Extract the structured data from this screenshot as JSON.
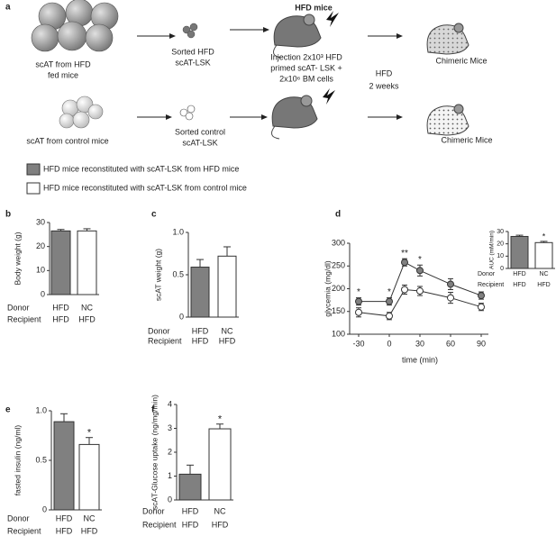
{
  "diagram": {
    "panel": "a",
    "source_hfd": [
      "scAT from HFD",
      "fed mice"
    ],
    "sorted_hfd": [
      "Sorted HFD",
      "scAT-LSK"
    ],
    "recipient_title": "HFD mice",
    "injection": [
      "Injection 2x10³ HFD",
      "primed scAT- LSK +",
      "2x10⁶ BM cells"
    ],
    "diet": [
      "HFD",
      "2 weeks"
    ],
    "outcome_top": "Chimeric Mice",
    "source_control": "scAT from control mice",
    "sorted_control": [
      "Sorted control",
      "scAT-LSK"
    ],
    "outcome_bottom": "Chimeric Mice",
    "legend": [
      "HFD mice reconstituted with scAT-LSK from HFD mice",
      "HFD mice reconstituted with scAT-LSK from control mice"
    ]
  },
  "chart_data": [
    {
      "type": "bar",
      "panel": "b",
      "ylabel": "Body weight (g)",
      "categories": [
        "HFD",
        "NC"
      ],
      "recipient_categories": [
        "HFD",
        "HFD"
      ],
      "row_labels": [
        "Donor",
        "Recipient"
      ],
      "values": [
        26.5,
        26.5
      ],
      "errors": [
        0.6,
        0.9
      ],
      "colors": [
        "#808080",
        "#ffffff"
      ],
      "ylim": [
        0,
        30
      ],
      "yticks": [
        0,
        10,
        20,
        30
      ],
      "significance": [
        null,
        null
      ]
    },
    {
      "type": "bar",
      "panel": "c",
      "ylabel": "scAT weight (g)",
      "categories": [
        "HFD",
        "NC"
      ],
      "recipient_categories": [
        "HFD",
        "HFD"
      ],
      "row_labels": [
        "Donor",
        "Recipient"
      ],
      "values": [
        0.59,
        0.72
      ],
      "errors": [
        0.09,
        0.11
      ],
      "colors": [
        "#808080",
        "#ffffff"
      ],
      "ylim": [
        0,
        1
      ],
      "yticks": [
        0,
        0.5,
        {
          "value": 1,
          "label": "1.0"
        }
      ],
      "significance": [
        null,
        null
      ]
    },
    {
      "type": "line",
      "panel": "d",
      "ylabel": "glycemia (mg/dl)",
      "xlabel": "time (min)",
      "x": [
        -30,
        0,
        15,
        30,
        60,
        90
      ],
      "xlim": [
        -30,
        90
      ],
      "xticks": [
        -30,
        0,
        30,
        60,
        90
      ],
      "ylim": [
        100,
        300
      ],
      "yticks": [
        100,
        150,
        200,
        250,
        300
      ],
      "series": [
        {
          "name": "HFD",
          "color": "#808080",
          "values": [
            172,
            172,
            258,
            240,
            210,
            185
          ],
          "errors": [
            8,
            8,
            8,
            12,
            12,
            8
          ]
        },
        {
          "name": "NC",
          "color": "#ffffff",
          "values": [
            148,
            140,
            198,
            195,
            180,
            160
          ],
          "errors": [
            10,
            8,
            10,
            10,
            12,
            8
          ]
        }
      ],
      "significance": [
        "*",
        "*",
        "**",
        "*",
        null,
        null
      ]
    },
    {
      "type": "bar",
      "ylabel": "AUC (mM/min)",
      "categories": [
        "HFD",
        "NC"
      ],
      "recipient_categories": [
        "HFD",
        "HFD"
      ],
      "row_labels": [
        "Donor",
        "Recipient"
      ],
      "values": [
        26,
        21
      ],
      "errors": [
        1,
        1
      ],
      "colors": [
        "#808080",
        "#ffffff"
      ],
      "ylim": [
        0,
        30
      ],
      "yticks": [
        0,
        10,
        20,
        30
      ],
      "significance": [
        null,
        "*"
      ]
    },
    {
      "type": "bar",
      "panel": "e",
      "ylabel": "fasted insulin (ng/ml)",
      "categories": [
        "HFD",
        "NC"
      ],
      "recipient_categories": [
        "HFD",
        "HFD"
      ],
      "row_labels": [
        "Donor",
        "Recipient"
      ],
      "values": [
        0.89,
        0.66
      ],
      "errors": [
        0.08,
        0.07
      ],
      "colors": [
        "#808080",
        "#ffffff"
      ],
      "ylim": [
        0,
        1
      ],
      "yticks": [
        0,
        0.5,
        {
          "value": 1,
          "label": "1.0"
        }
      ],
      "significance": [
        null,
        "*"
      ]
    },
    {
      "type": "bar",
      "panel": "f",
      "ylabel": "scAT-Glucose uptake (ng/mg/min)",
      "categories": [
        "HFD",
        "NC"
      ],
      "recipient_categories": [
        "HFD",
        "HFD"
      ],
      "row_labels": [
        "Donor",
        "Recipient"
      ],
      "values": [
        1.08,
        2.98
      ],
      "errors": [
        0.38,
        0.2
      ],
      "colors": [
        "#808080",
        "#ffffff"
      ],
      "ylim": [
        0,
        4
      ],
      "yticks": [
        0,
        1,
        2,
        3,
        4
      ],
      "significance": [
        null,
        "*"
      ]
    }
  ]
}
